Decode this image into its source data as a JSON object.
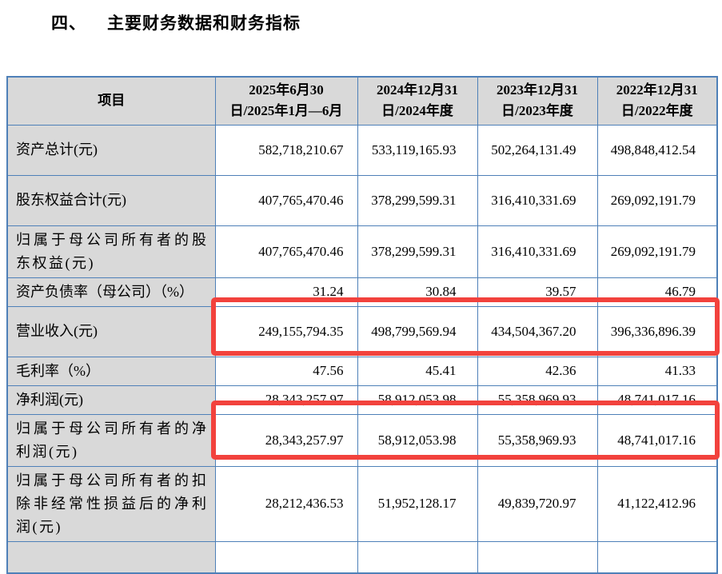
{
  "page": {
    "section_no": "四、",
    "section_title": "主要财务数据和财务指标"
  },
  "table": {
    "columns": [
      "项目",
      "2025年6月30日/2025年1月—6月",
      "2024年12月31日/2024年度",
      "2023年12月31日/2023年度",
      "2022年12月31日/2022年度"
    ],
    "rows": [
      {
        "label": "资产总计(元)",
        "values": [
          "582,718,210.67",
          "533,119,165.93",
          "502,264,131.49",
          "498,848,412.54"
        ],
        "highlight": false
      },
      {
        "label": "股东权益合计(元)",
        "values": [
          "407,765,470.46",
          "378,299,599.31",
          "316,410,331.69",
          "269,092,191.79"
        ],
        "highlight": false
      },
      {
        "label": "归属于母公司所有者的股东权益(元)",
        "values": [
          "407,765,470.46",
          "378,299,599.31",
          "316,410,331.69",
          "269,092,191.79"
        ],
        "highlight": false
      },
      {
        "label": "资产负债率（母公司）（%）",
        "values": [
          "31.24",
          "30.84",
          "39.57",
          "46.79"
        ],
        "highlight": false
      },
      {
        "label": "营业收入(元)",
        "values": [
          "249,155,794.35",
          "498,799,569.94",
          "434,504,367.20",
          "396,336,896.39"
        ],
        "highlight": true
      },
      {
        "label": "毛利率（%）",
        "values": [
          "47.56",
          "45.41",
          "42.36",
          "41.33"
        ],
        "highlight": false
      },
      {
        "label": "净利润(元)",
        "values": [
          "28,343,257.97",
          "58,912,053.98",
          "55,358,969.93",
          "48,741,017.16"
        ],
        "highlight": false
      },
      {
        "label": "归属于母公司所有者的净利润(元)",
        "values": [
          "28,343,257.97",
          "58,912,053.98",
          "55,358,969.93",
          "48,741,017.16"
        ],
        "highlight": true
      },
      {
        "label": "归属于母公司所有者的扣除非经常性损益后的净利润(元)",
        "values": [
          "28,212,436.53",
          "51,952,128.17",
          "49,839,720.97",
          "41,122,412.96"
        ],
        "highlight": false
      }
    ]
  },
  "colors": {
    "table_border": "#4e80b8",
    "header_bg": "#d9d9d9",
    "label_bg": "#d9d9d9",
    "highlight_red": "#f2423d"
  }
}
